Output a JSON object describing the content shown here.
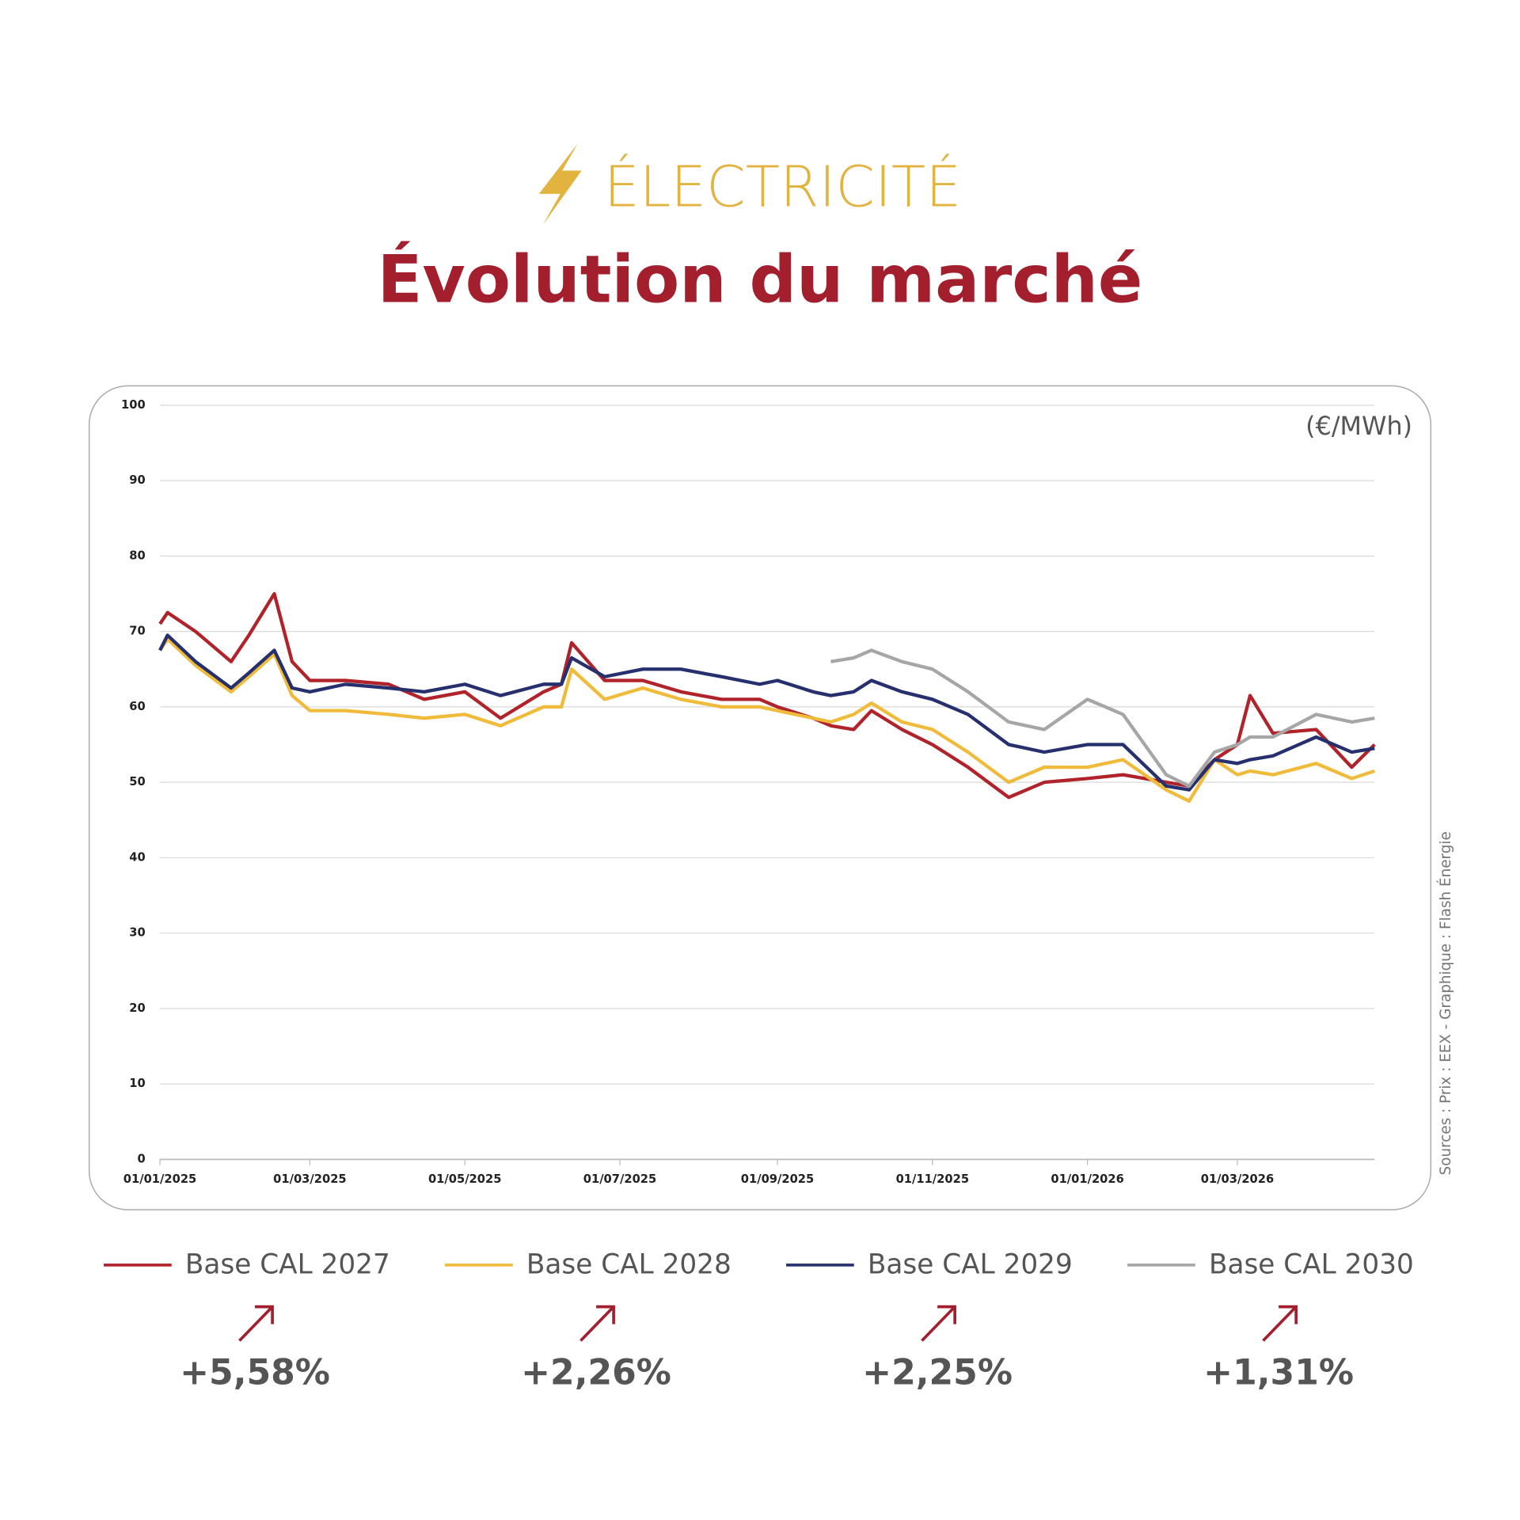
{
  "chart_data": {
    "type": "line",
    "supertitle": "ÉLECTRICITÉ",
    "title": "Évolution du marché",
    "unit_label": "(€/MWh)",
    "source": "Sources : Prix : EEX - Graphique : Flash Énergie",
    "x": [
      "2025-01-01",
      "2025-01-04",
      "2025-01-15",
      "2025-01-29",
      "2025-02-05",
      "2025-02-15",
      "2025-02-22",
      "2025-03-01",
      "2025-03-15",
      "2025-04-01",
      "2025-04-15",
      "2025-05-01",
      "2025-05-15",
      "2025-06-01",
      "2025-06-08",
      "2025-06-12",
      "2025-06-25",
      "2025-07-10",
      "2025-07-25",
      "2025-08-10",
      "2025-08-25",
      "2025-09-01",
      "2025-09-15",
      "2025-09-22",
      "2025-10-01",
      "2025-10-08",
      "2025-10-20",
      "2025-11-01",
      "2025-11-15",
      "2025-12-01",
      "2025-12-15",
      "2026-01-01",
      "2026-01-15",
      "2026-02-01",
      "2026-02-10",
      "2026-02-20",
      "2026-03-01",
      "2026-03-06",
      "2026-03-15",
      "2026-04-01",
      "2026-04-15",
      "2026-04-24"
    ],
    "series": [
      {
        "name": "Base CAL 2027",
        "color": "#b0232a",
        "change_label": "+5,58%",
        "values": [
          71,
          72.5,
          70,
          66,
          69.5,
          75,
          66,
          63.5,
          63.5,
          63,
          61,
          62,
          58.5,
          62,
          63,
          68.5,
          63.5,
          63.5,
          62,
          61,
          61,
          60,
          58.5,
          57.5,
          57,
          59.5,
          57,
          55,
          52,
          48,
          50,
          50.5,
          51,
          50,
          49.5,
          53,
          55,
          61.5,
          56.5,
          57,
          52,
          55
        ]
      },
      {
        "name": "Base CAL 2028",
        "color": "#f0bb3a",
        "change_label": "+2,26%",
        "values": [
          67.5,
          69,
          65.5,
          62,
          64,
          67,
          61.5,
          59.5,
          59.5,
          59,
          58.5,
          59,
          57.5,
          60,
          60,
          65,
          61,
          62.5,
          61,
          60,
          60,
          59.5,
          58.5,
          58,
          59,
          60.5,
          58,
          57,
          54,
          50,
          52,
          52,
          53,
          49,
          47.5,
          53,
          51,
          51.5,
          51,
          52.5,
          50.5,
          51.5
        ]
      },
      {
        "name": "Base CAL 2029",
        "color": "#26306e",
        "change_label": "+2,25%",
        "values": [
          67.5,
          69.5,
          66,
          62.5,
          64.5,
          67.5,
          62.5,
          62,
          63,
          62.5,
          62,
          63,
          61.5,
          63,
          63,
          66.5,
          64,
          65,
          65,
          64,
          63,
          63.5,
          62,
          61.5,
          62,
          63.5,
          62,
          61,
          59,
          55,
          54,
          55,
          55,
          49.5,
          49,
          53,
          52.5,
          53,
          53.5,
          56,
          54,
          54.5
        ]
      },
      {
        "name": "Base CAL 2030",
        "color": "#a6a6a6",
        "change_label": "+1,31%",
        "values": [
          null,
          null,
          null,
          null,
          null,
          null,
          null,
          null,
          null,
          null,
          null,
          null,
          null,
          null,
          null,
          null,
          null,
          null,
          null,
          null,
          null,
          null,
          null,
          66,
          66.5,
          67.5,
          66,
          65,
          62,
          58,
          57,
          61,
          59,
          51,
          49.5,
          54,
          55,
          56,
          56,
          59,
          58,
          58.5
        ]
      }
    ],
    "xlim": [
      "2025-01-01",
      "2026-04-24"
    ],
    "xticks": [
      {
        "value": "2025-01-01",
        "label": "01/01/2025"
      },
      {
        "value": "2025-03-01",
        "label": "01/03/2025"
      },
      {
        "value": "2025-05-01",
        "label": "01/05/2025"
      },
      {
        "value": "2025-07-01",
        "label": "01/07/2025"
      },
      {
        "value": "2025-09-01",
        "label": "01/09/2025"
      },
      {
        "value": "2025-11-01",
        "label": "01/11/2025"
      },
      {
        "value": "2026-01-01",
        "label": "01/01/2026"
      },
      {
        "value": "2026-03-01",
        "label": "01/03/2026"
      }
    ],
    "ylim": [
      0,
      100
    ],
    "yticks": [
      0,
      10,
      20,
      30,
      40,
      50,
      60,
      70,
      80,
      90,
      100
    ],
    "grid": true
  }
}
